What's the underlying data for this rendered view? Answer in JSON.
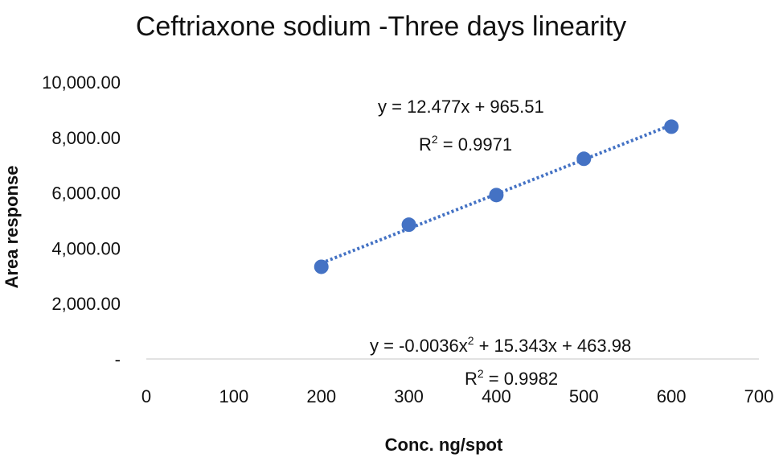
{
  "chart_data": {
    "type": "scatter",
    "title": "Ceftriaxone sodium -Three days linearity",
    "xlabel": "Conc. ng/spot",
    "ylabel": "Area response",
    "xlim": [
      0,
      700
    ],
    "ylim": [
      0,
      10000
    ],
    "x_ticks": [
      0,
      100,
      200,
      300,
      400,
      500,
      600,
      700
    ],
    "x_tick_labels": [
      "0",
      "100",
      "200",
      "300",
      "400",
      "500",
      "600",
      "700"
    ],
    "y_ticks": [
      0,
      2000,
      4000,
      6000,
      8000,
      10000
    ],
    "y_tick_labels": [
      "-",
      "2,000.00",
      "4,000.00",
      "6,000.00",
      "8,000.00",
      "10,000.00"
    ],
    "grid": false,
    "series": [
      {
        "x": [
          200,
          300,
          400,
          500,
          600
        ],
        "y": [
          3330,
          4850,
          5920,
          7230,
          8390
        ],
        "color": "#4472C4"
      }
    ],
    "trendline": {
      "type": "linear",
      "x_range": [
        200,
        600
      ],
      "slope": 12.477,
      "intercept": 965.51,
      "color": "#4472C4",
      "style": "dotted"
    },
    "annotations": {
      "linear_eq": "y = 12.477x + 965.51",
      "linear_r2_prefix": "R",
      "linear_r2_sup": "2",
      "linear_r2_value": " = 0.9971",
      "poly_eq_prefix": "y = -0.0036x",
      "poly_eq_sup": "2",
      "poly_eq_suffix": " + 15.343x + 463.98",
      "poly_r2_prefix": "R",
      "poly_r2_sup": "2",
      "poly_r2_value": " = 0.9982"
    }
  }
}
